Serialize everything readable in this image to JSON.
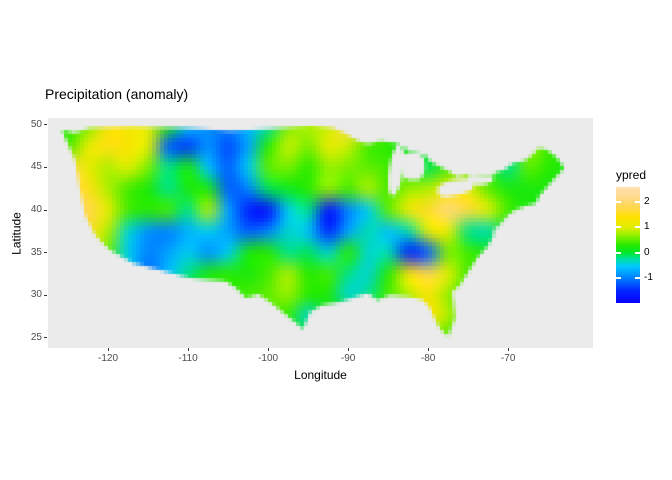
{
  "page": {
    "background": "#ffffff",
    "panel_bg": "#ebebeb",
    "axis_text_color": "#4d4d4d",
    "tick_color": "#333333",
    "text_color": "#000000"
  },
  "chart_data": {
    "type": "heatmap",
    "title": "Precipitation (anomaly)",
    "xlabel": "Longitude",
    "ylabel": "Latitude",
    "x_ticks": [
      -120,
      -110,
      -100,
      -90,
      -80,
      -70
    ],
    "y_ticks": [
      50,
      45,
      40,
      35,
      30,
      25
    ],
    "x_range": [
      -127.5,
      -59.4
    ],
    "y_range": [
      23.8,
      50.8
    ],
    "legend": {
      "title": "ypred",
      "tick_values": [
        2,
        1,
        0,
        -1
      ],
      "value_range": [
        2.6,
        -2.0
      ],
      "position": "right"
    },
    "color_scale": [
      [
        -2.0,
        "#0a00ff"
      ],
      [
        -1.5,
        "#0028ff"
      ],
      [
        -1.0,
        "#0082ff"
      ],
      [
        -0.55,
        "#00c8ff"
      ],
      [
        -0.25,
        "#00e1a0"
      ],
      [
        0.0,
        "#00e628"
      ],
      [
        0.3,
        "#28eb00"
      ],
      [
        0.7,
        "#96f000"
      ],
      [
        1.0,
        "#e1ee00"
      ],
      [
        1.4,
        "#ffe100"
      ],
      [
        1.8,
        "#ffd850"
      ],
      [
        2.2,
        "#ffda8c"
      ],
      [
        2.6,
        "#ffe1b0"
      ]
    ],
    "grid": {
      "lon0": -125,
      "dlon": 2.5,
      "lat0": 50,
      "dlat": -2.5,
      "lons": [
        -125,
        -122.5,
        -120,
        -117.5,
        -115,
        -112.5,
        -110,
        -107.5,
        -105,
        -102.5,
        -100,
        -97.5,
        -95,
        -92.5,
        -90,
        -87.5,
        -85,
        -82.5,
        -80,
        -77.5,
        -75,
        -72.5,
        -70,
        -67.5,
        -65,
        -62.5
      ],
      "lats": [
        50,
        47.5,
        45,
        42.5,
        40,
        37.5,
        35,
        32.5,
        30,
        27.5,
        25
      ],
      "values": [
        [
          0.3,
          0.6,
          1.3,
          1.2,
          1.0,
          0.3,
          -0.5,
          -0.9,
          -1.0,
          -0.6,
          -0.3,
          0.6,
          0.8,
          0.9,
          1.9,
          1.6,
          0.4,
          0.2,
          0.3,
          0.4,
          0.5,
          0.3,
          -0.4,
          0.8,
          0.5,
          0.4
        ],
        [
          0.4,
          1.1,
          1.5,
          1.3,
          1.0,
          -1.2,
          -1.4,
          -0.9,
          -1.3,
          -0.8,
          0.3,
          0.9,
          0.6,
          1.1,
          0.9,
          0.4,
          0.3,
          0.1,
          0.3,
          0.5,
          0.6,
          0.2,
          -0.4,
          0.7,
          0.4,
          0.3
        ],
        [
          1.8,
          1.1,
          0.8,
          1.0,
          0.6,
          -0.2,
          0.2,
          -0.6,
          -1.2,
          -0.5,
          0.5,
          0.6,
          0.3,
          0.7,
          0.6,
          0.5,
          0.4,
          0.2,
          -0.1,
          0.4,
          0.5,
          0.3,
          -0.2,
          0.5,
          0.3,
          0.2
        ],
        [
          2.0,
          1.5,
          0.8,
          0.4,
          0.2,
          -0.2,
          0.2,
          0.2,
          -1.2,
          -1.0,
          -0.1,
          0.1,
          0.3,
          0.7,
          0.4,
          0.8,
          0.4,
          0.7,
          0.8,
          1.3,
          1.1,
          0.5,
          0.2,
          0.2,
          0.2,
          0.2
        ],
        [
          2.1,
          1.8,
          1.1,
          0.4,
          0.3,
          0.4,
          -0.2,
          0.8,
          -0.8,
          -1.6,
          -1.8,
          -0.5,
          -0.2,
          -1.8,
          -1.0,
          -0.5,
          0.5,
          1.2,
          1.6,
          2.1,
          1.7,
          1.0,
          0.4,
          0.2,
          0.2,
          0.2
        ],
        [
          1.1,
          1.6,
          0.8,
          -0.4,
          -0.9,
          -1.0,
          -0.7,
          -0.5,
          -0.8,
          -1.2,
          -1.0,
          -0.4,
          -0.6,
          -1.5,
          -0.8,
          -0.3,
          -0.6,
          -0.3,
          1.0,
          1.1,
          -0.2,
          -0.3,
          0.2,
          0.2,
          0.2,
          0.2
        ],
        [
          0.6,
          1.2,
          0.5,
          -0.5,
          -1.0,
          -0.8,
          -0.5,
          -0.9,
          -0.5,
          0.2,
          0.3,
          -0.2,
          -0.1,
          -0.4,
          0.3,
          -0.4,
          -0.3,
          -1.6,
          -1.2,
          0.6,
          0.4,
          0.2,
          0.2,
          0.2,
          0.2,
          0.2
        ],
        [
          0.3,
          0.9,
          0.2,
          -0.4,
          -1.1,
          -0.6,
          -0.2,
          0.2,
          0.3,
          0.2,
          0.4,
          0.8,
          0.3,
          0.4,
          -0.2,
          -0.4,
          0.3,
          1.3,
          1.8,
          1.0,
          0.4,
          0.2,
          0.2,
          0.2,
          0.2,
          0.2
        ],
        [
          0.2,
          0.4,
          0.2,
          -0.2,
          -0.4,
          -0.2,
          0.1,
          0.2,
          0.3,
          0.4,
          0.5,
          0.7,
          0.3,
          0.2,
          -0.4,
          -0.2,
          0.4,
          0.8,
          1.3,
          0.7,
          0.3,
          0.2,
          0.2,
          0.2,
          0.2,
          0.2
        ],
        [
          0.2,
          0.2,
          0.2,
          0.2,
          0.2,
          0.2,
          0.2,
          0.2,
          0.2,
          0.3,
          0.4,
          0.3,
          -0.4,
          0.2,
          0.2,
          0.2,
          0.3,
          0.5,
          1.4,
          0.8,
          0.3,
          0.2,
          0.2,
          0.2,
          0.2,
          0.2
        ],
        [
          0.2,
          0.2,
          0.2,
          0.2,
          0.2,
          0.2,
          0.2,
          0.2,
          0.2,
          0.2,
          0.3,
          0.2,
          0.2,
          0.2,
          0.2,
          0.2,
          0.2,
          0.4,
          0.6,
          0.4,
          0.2,
          0.2,
          0.2,
          0.2,
          0.2,
          0.2
        ]
      ]
    },
    "outline_lonlat": [
      [
        -125.75,
        49.41
      ],
      [
        -124.13,
        49.06
      ],
      [
        -122.25,
        49.65
      ],
      [
        -117.25,
        49.77
      ],
      [
        -111.0,
        49.65
      ],
      [
        -104.75,
        49.3
      ],
      [
        -99.75,
        49.53
      ],
      [
        -94.63,
        49.88
      ],
      [
        -91.88,
        49.65
      ],
      [
        -90.38,
        49.06
      ],
      [
        -88.75,
        48.12
      ],
      [
        -87.5,
        47.77
      ],
      [
        -86.0,
        48.12
      ],
      [
        -84.13,
        47.89
      ],
      [
        -83.25,
        47.42
      ],
      [
        -81.88,
        46.83
      ],
      [
        -80.38,
        46.48
      ],
      [
        -79.63,
        45.66
      ],
      [
        -77.25,
        44.48
      ],
      [
        -76.38,
        43.9
      ],
      [
        -74.75,
        44.25
      ],
      [
        -72.25,
        44.01
      ],
      [
        -71.38,
        44.48
      ],
      [
        -70.5,
        44.72
      ],
      [
        -69.38,
        45.54
      ],
      [
        -68.0,
        45.77
      ],
      [
        -67.13,
        46.36
      ],
      [
        -66.13,
        47.3
      ],
      [
        -65.13,
        47.07
      ],
      [
        -64.0,
        46.24
      ],
      [
        -63.0,
        44.95
      ],
      [
        -64.38,
        43.54
      ],
      [
        -65.25,
        42.61
      ],
      [
        -66.13,
        41.67
      ],
      [
        -66.5,
        40.85
      ],
      [
        -67.88,
        40.49
      ],
      [
        -69.13,
        40.02
      ],
      [
        -70.0,
        39.44
      ],
      [
        -70.75,
        38.62
      ],
      [
        -71.63,
        37.68
      ],
      [
        -71.88,
        36.85
      ],
      [
        -72.63,
        35.68
      ],
      [
        -73.88,
        34.39
      ],
      [
        -75.0,
        32.75
      ],
      [
        -76.0,
        31.22
      ],
      [
        -77.0,
        30.4
      ],
      [
        -76.88,
        29.46
      ],
      [
        -76.63,
        27.35
      ],
      [
        -77.5,
        25.23
      ],
      [
        -78.38,
        25.94
      ],
      [
        -79.0,
        26.88
      ],
      [
        -79.75,
        28.52
      ],
      [
        -80.63,
        29.46
      ],
      [
        -82.25,
        29.81
      ],
      [
        -84.75,
        30.05
      ],
      [
        -86.38,
        29.46
      ],
      [
        -87.5,
        30.28
      ],
      [
        -89.13,
        29.81
      ],
      [
        -91.0,
        29.23
      ],
      [
        -93.25,
        28.87
      ],
      [
        -94.75,
        28.05
      ],
      [
        -95.63,
        26.06
      ],
      [
        -96.63,
        26.88
      ],
      [
        -97.88,
        27.82
      ],
      [
        -99.75,
        29.23
      ],
      [
        -101.25,
        30.16
      ],
      [
        -102.75,
        29.69
      ],
      [
        -104.13,
        30.99
      ],
      [
        -105.38,
        31.69
      ],
      [
        -109.75,
        32.04
      ],
      [
        -113.5,
        32.98
      ],
      [
        -116.88,
        33.8
      ],
      [
        -119.75,
        35.33
      ],
      [
        -121.63,
        37.09
      ],
      [
        -122.88,
        39.44
      ],
      [
        -123.5,
        42.37
      ],
      [
        -124.13,
        45.89
      ]
    ],
    "lakes": [
      {
        "name": "lake-michigan",
        "lon": -84.0,
        "lat": 44.7,
        "rlon": 0.9,
        "rlat": 3.1,
        "rot": 8
      },
      {
        "name": "lake-huron",
        "lon": -81.9,
        "lat": 45.2,
        "rlon": 1.5,
        "rlat": 1.7,
        "rot": 0
      },
      {
        "name": "lake-erie",
        "lon": -76.6,
        "lat": 42.6,
        "rlon": 2.3,
        "rlat": 0.9,
        "rot": -12
      },
      {
        "name": "lake-ontario",
        "lon": -73.5,
        "lat": 43.7,
        "rlon": 1.7,
        "rlat": 0.75,
        "rot": -8
      },
      {
        "name": "chesapeake-bay",
        "lon": -71.5,
        "lat": 37.2,
        "rlon": 0.4,
        "rlat": 0.8,
        "rot": 15
      }
    ]
  }
}
